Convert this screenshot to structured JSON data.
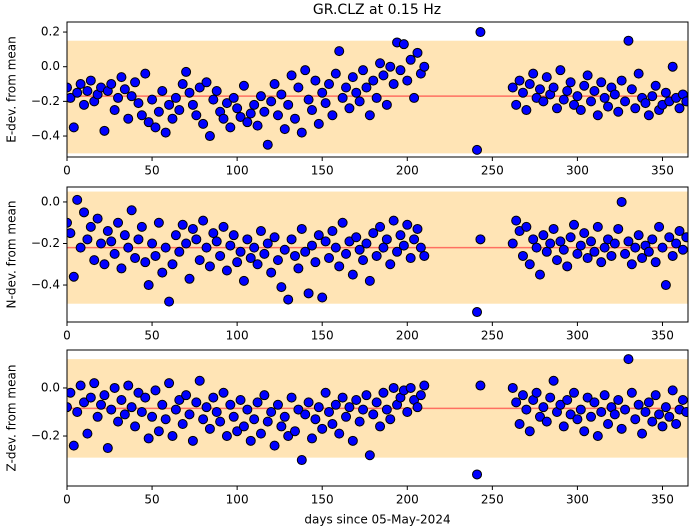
{
  "chart_data": [
    {
      "type": "scatter",
      "title": "GR.CLZ at 0.15 Hz",
      "y_label": "E-dev. from mean",
      "x": [
        0,
        2,
        4,
        6,
        8,
        10,
        12,
        14,
        16,
        18,
        20,
        22,
        24,
        26,
        28,
        30,
        32,
        34,
        36,
        38,
        40,
        42,
        44,
        46,
        48,
        50,
        52,
        54,
        56,
        58,
        60,
        62,
        64,
        66,
        68,
        70,
        72,
        74,
        76,
        78,
        80,
        82,
        84,
        86,
        88,
        90,
        92,
        94,
        96,
        98,
        100,
        102,
        104,
        106,
        108,
        110,
        112,
        114,
        116,
        118,
        120,
        122,
        124,
        126,
        128,
        130,
        132,
        134,
        136,
        138,
        140,
        142,
        144,
        146,
        148,
        150,
        152,
        154,
        156,
        158,
        160,
        162,
        164,
        166,
        168,
        170,
        172,
        174,
        176,
        178,
        180,
        182,
        184,
        186,
        188,
        190,
        192,
        194,
        196,
        198,
        200,
        202,
        204,
        206,
        208,
        210,
        241,
        243,
        262,
        264,
        266,
        268,
        270,
        272,
        274,
        276,
        278,
        280,
        282,
        284,
        286,
        288,
        290,
        292,
        294,
        296,
        298,
        300,
        302,
        304,
        306,
        308,
        310,
        312,
        314,
        316,
        318,
        320,
        322,
        324,
        326,
        328,
        330,
        332,
        334,
        336,
        338,
        340,
        342,
        344,
        346,
        348,
        350,
        352,
        354,
        356,
        358,
        360,
        362,
        364
      ],
      "values": [
        -0.12,
        -0.18,
        -0.35,
        -0.15,
        -0.1,
        -0.22,
        -0.14,
        -0.08,
        -0.2,
        -0.16,
        -0.12,
        -0.37,
        -0.14,
        -0.1,
        -0.25,
        -0.18,
        -0.06,
        -0.13,
        -0.3,
        -0.17,
        -0.09,
        -0.21,
        -0.28,
        -0.04,
        -0.32,
        -0.19,
        -0.35,
        -0.26,
        -0.14,
        -0.38,
        -0.22,
        -0.3,
        -0.18,
        -0.25,
        -0.1,
        -0.03,
        -0.15,
        -0.22,
        -0.28,
        -0.12,
        -0.33,
        -0.09,
        -0.4,
        -0.19,
        -0.14,
        -0.26,
        -0.3,
        -0.21,
        -0.35,
        -0.18,
        -0.24,
        -0.29,
        -0.11,
        -0.32,
        -0.27,
        -0.22,
        -0.34,
        -0.17,
        -0.26,
        -0.45,
        -0.2,
        -0.1,
        -0.28,
        -0.16,
        -0.36,
        -0.22,
        -0.05,
        -0.3,
        -0.12,
        -0.38,
        -0.02,
        -0.19,
        -0.25,
        -0.08,
        -0.33,
        -0.15,
        -0.21,
        -0.1,
        -0.28,
        -0.04,
        0.09,
        -0.18,
        -0.12,
        -0.24,
        -0.06,
        -0.15,
        -0.2,
        -0.02,
        -0.12,
        -0.28,
        -0.08,
        -0.18,
        0.02,
        -0.05,
        -0.22,
        0.0,
        -0.1,
        0.14,
        -0.02,
        0.13,
        -0.08,
        0.04,
        -0.18,
        0.08,
        -0.04,
        0.0,
        -0.48,
        0.2,
        -0.12,
        -0.22,
        -0.08,
        -0.15,
        -0.25,
        -0.1,
        -0.04,
        -0.18,
        -0.13,
        -0.2,
        -0.06,
        -0.16,
        -0.12,
        -0.24,
        -0.02,
        -0.19,
        -0.14,
        -0.09,
        -0.22,
        -0.17,
        -0.25,
        -0.11,
        -0.05,
        -0.2,
        -0.14,
        -0.28,
        -0.09,
        -0.18,
        -0.23,
        -0.12,
        -0.16,
        -0.26,
        -0.08,
        -0.2,
        0.15,
        -0.13,
        -0.24,
        -0.04,
        -0.18,
        -0.21,
        -0.28,
        -0.17,
        -0.11,
        -0.25,
        -0.22,
        -0.15,
        -0.2,
        0.0,
        -0.18,
        -0.24,
        -0.16,
        -0.2
      ],
      "mean": -0.17,
      "band": [
        -0.5,
        0.15
      ],
      "xlim": [
        0,
        365
      ],
      "xticks": [
        0,
        50,
        100,
        150,
        200,
        250,
        300,
        350
      ],
      "ylim": [
        -0.521,
        0.258
      ],
      "yticks": [
        0.2,
        {
          "value": 0,
          "label": "0.0"
        },
        {
          "value": -0.2,
          "label": "−0.2"
        },
        {
          "value": -0.4,
          "label": "−0.4"
        }
      ],
      "color": "#0000ff",
      "band_color": "#ffe4b5",
      "mean_color": "#ff6f61"
    },
    {
      "type": "scatter",
      "y_label": "N-dev. from mean",
      "x": [
        0,
        2,
        4,
        6,
        8,
        10,
        12,
        14,
        16,
        18,
        20,
        22,
        24,
        26,
        28,
        30,
        32,
        34,
        36,
        38,
        40,
        42,
        44,
        46,
        48,
        50,
        52,
        54,
        56,
        58,
        60,
        62,
        64,
        66,
        68,
        70,
        72,
        74,
        76,
        78,
        80,
        82,
        84,
        86,
        88,
        90,
        92,
        94,
        96,
        98,
        100,
        102,
        104,
        106,
        108,
        110,
        112,
        114,
        116,
        118,
        120,
        122,
        124,
        126,
        128,
        130,
        132,
        134,
        136,
        138,
        140,
        142,
        144,
        146,
        148,
        150,
        152,
        154,
        156,
        158,
        160,
        162,
        164,
        166,
        168,
        170,
        172,
        174,
        176,
        178,
        180,
        182,
        184,
        186,
        188,
        190,
        192,
        194,
        196,
        198,
        200,
        202,
        204,
        206,
        208,
        210,
        241,
        243,
        262,
        264,
        266,
        268,
        270,
        272,
        274,
        276,
        278,
        280,
        282,
        284,
        286,
        288,
        290,
        292,
        294,
        296,
        298,
        300,
        302,
        304,
        306,
        308,
        310,
        312,
        314,
        316,
        318,
        320,
        322,
        324,
        326,
        328,
        330,
        332,
        334,
        336,
        338,
        340,
        342,
        344,
        346,
        348,
        350,
        352,
        354,
        356,
        358,
        360,
        362,
        364
      ],
      "values": [
        -0.1,
        -0.15,
        -0.36,
        0.01,
        -0.22,
        -0.05,
        -0.18,
        -0.12,
        -0.28,
        -0.08,
        -0.2,
        -0.3,
        -0.14,
        -0.19,
        -0.25,
        -0.1,
        -0.32,
        -0.16,
        -0.22,
        -0.04,
        -0.27,
        -0.18,
        -0.12,
        -0.29,
        -0.4,
        -0.2,
        -0.26,
        -0.1,
        -0.34,
        -0.22,
        -0.48,
        -0.3,
        -0.16,
        -0.24,
        -0.11,
        -0.2,
        -0.37,
        -0.13,
        -0.18,
        -0.28,
        -0.09,
        -0.22,
        -0.31,
        -0.15,
        -0.19,
        -0.26,
        -0.12,
        -0.33,
        -0.21,
        -0.16,
        -0.29,
        -0.24,
        -0.38,
        -0.18,
        -0.27,
        -0.22,
        -0.3,
        -0.14,
        -0.25,
        -0.2,
        -0.34,
        -0.17,
        -0.28,
        -0.41,
        -0.23,
        -0.47,
        -0.18,
        -0.26,
        -0.32,
        -0.13,
        -0.24,
        -0.44,
        -0.21,
        -0.29,
        -0.16,
        -0.46,
        -0.19,
        -0.27,
        -0.14,
        -0.22,
        -0.31,
        -0.1,
        -0.25,
        -0.19,
        -0.35,
        -0.17,
        -0.23,
        -0.28,
        -0.2,
        -0.38,
        -0.15,
        -0.26,
        -0.12,
        -0.22,
        -0.18,
        -0.3,
        -0.09,
        -0.24,
        -0.16,
        -0.21,
        -0.11,
        -0.27,
        -0.18,
        -0.13,
        -0.22,
        -0.26,
        -0.53,
        -0.18,
        -0.2,
        -0.09,
        -0.14,
        -0.26,
        -0.12,
        -0.3,
        -0.18,
        -0.22,
        -0.35,
        -0.16,
        -0.24,
        -0.2,
        -0.13,
        -0.28,
        -0.19,
        -0.23,
        -0.31,
        -0.17,
        -0.11,
        -0.25,
        -0.21,
        -0.15,
        -0.27,
        -0.19,
        -0.24,
        -0.12,
        -0.29,
        -0.22,
        -0.18,
        -0.26,
        -0.2,
        -0.13,
        0.0,
        -0.25,
        -0.19,
        -0.3,
        -0.22,
        -0.16,
        -0.27,
        -0.21,
        -0.24,
        -0.18,
        -0.29,
        -0.12,
        -0.22,
        -0.4,
        -0.17,
        -0.26,
        -0.2,
        -0.14,
        -0.23,
        -0.17
      ],
      "mean": -0.22,
      "band": [
        -0.49,
        0.05
      ],
      "xlim": [
        0,
        365
      ],
      "xticks": [
        0,
        50,
        100,
        150,
        200,
        250,
        300,
        350
      ],
      "ylim": [
        -0.578,
        0.072
      ],
      "yticks": [
        {
          "value": 0,
          "label": "0.0"
        },
        {
          "value": -0.2,
          "label": "−0.2"
        },
        {
          "value": -0.4,
          "label": "−0.4"
        }
      ],
      "color": "#0000ff",
      "band_color": "#ffe4b5",
      "mean_color": "#ff6f61"
    },
    {
      "type": "scatter",
      "y_label": "Z-dev. from mean",
      "x_label": "days since 05-May-2024",
      "x": [
        0,
        2,
        4,
        6,
        8,
        10,
        12,
        14,
        16,
        18,
        20,
        22,
        24,
        26,
        28,
        30,
        32,
        34,
        36,
        38,
        40,
        42,
        44,
        46,
        48,
        50,
        52,
        54,
        56,
        58,
        60,
        62,
        64,
        66,
        68,
        70,
        72,
        74,
        76,
        78,
        80,
        82,
        84,
        86,
        88,
        90,
        92,
        94,
        96,
        98,
        100,
        102,
        104,
        106,
        108,
        110,
        112,
        114,
        116,
        118,
        120,
        122,
        124,
        126,
        128,
        130,
        132,
        134,
        136,
        138,
        140,
        142,
        144,
        146,
        148,
        150,
        152,
        154,
        156,
        158,
        160,
        162,
        164,
        166,
        168,
        170,
        172,
        174,
        176,
        178,
        180,
        182,
        184,
        186,
        188,
        190,
        192,
        194,
        196,
        198,
        200,
        202,
        204,
        206,
        208,
        210,
        241,
        243,
        262,
        264,
        266,
        268,
        270,
        272,
        274,
        276,
        278,
        280,
        282,
        284,
        286,
        288,
        290,
        292,
        294,
        296,
        298,
        300,
        302,
        304,
        306,
        308,
        310,
        312,
        314,
        316,
        318,
        320,
        322,
        324,
        326,
        328,
        330,
        332,
        334,
        336,
        338,
        340,
        342,
        344,
        346,
        348,
        350,
        352,
        354,
        356,
        358,
        360,
        362,
        364
      ],
      "values": [
        -0.08,
        -0.02,
        -0.24,
        -0.1,
        0.01,
        -0.06,
        -0.19,
        -0.04,
        0.02,
        -0.12,
        -0.07,
        -0.03,
        -0.25,
        -0.09,
        0.0,
        -0.14,
        -0.05,
        -0.11,
        0.01,
        -0.08,
        -0.16,
        -0.02,
        -0.1,
        -0.04,
        -0.21,
        -0.12,
        -0.01,
        -0.18,
        -0.07,
        -0.13,
        0.02,
        -0.2,
        -0.09,
        -0.05,
        -0.15,
        -0.03,
        -0.11,
        -0.22,
        -0.06,
        0.03,
        -0.13,
        -0.08,
        -0.17,
        -0.04,
        -0.1,
        -0.14,
        -0.02,
        -0.2,
        -0.07,
        -0.12,
        -0.18,
        -0.05,
        -0.16,
        -0.09,
        -0.22,
        -0.13,
        -0.06,
        -0.19,
        -0.03,
        -0.14,
        -0.1,
        -0.24,
        -0.07,
        -0.16,
        -0.12,
        -0.2,
        -0.04,
        -0.18,
        -0.09,
        -0.3,
        -0.11,
        -0.06,
        -0.21,
        -0.13,
        -0.08,
        -0.17,
        -0.02,
        -0.1,
        -0.15,
        -0.07,
        -0.19,
        -0.04,
        -0.12,
        -0.08,
        -0.22,
        -0.05,
        -0.14,
        -0.09,
        -0.03,
        -0.28,
        -0.11,
        -0.06,
        -0.16,
        -0.02,
        -0.09,
        -0.13,
        0.0,
        -0.07,
        -0.04,
        -0.01,
        -0.1,
        0.0,
        -0.05,
        -0.08,
        -0.03,
        0.01,
        -0.36,
        0.01,
        0.0,
        -0.06,
        -0.15,
        -0.03,
        -0.09,
        -0.18,
        -0.05,
        -0.02,
        -0.12,
        -0.08,
        -0.14,
        -0.04,
        0.03,
        -0.1,
        -0.07,
        -0.16,
        -0.05,
        -0.11,
        -0.02,
        -0.13,
        -0.09,
        -0.18,
        -0.04,
        -0.12,
        -0.06,
        -0.2,
        -0.1,
        -0.03,
        -0.15,
        -0.08,
        -0.11,
        -0.05,
        -0.17,
        -0.09,
        0.12,
        -0.02,
        -0.13,
        -0.07,
        -0.19,
        -0.1,
        -0.06,
        -0.14,
        -0.03,
        -0.11,
        -0.16,
        -0.08,
        -0.12,
        -0.01,
        -0.15,
        -0.09,
        -0.05,
        -0.1
      ],
      "mean": -0.085,
      "band": [
        -0.29,
        0.12
      ],
      "xlim": [
        0,
        365
      ],
      "xticks": [
        0,
        50,
        100,
        150,
        200,
        250,
        300,
        350
      ],
      "ylim": [
        -0.408,
        0.158
      ],
      "yticks": [
        {
          "value": 0,
          "label": "0.0"
        },
        {
          "value": -0.2,
          "label": "−0.2"
        }
      ],
      "color": "#0000ff",
      "band_color": "#ffe4b5",
      "mean_color": "#ff6f61"
    }
  ]
}
